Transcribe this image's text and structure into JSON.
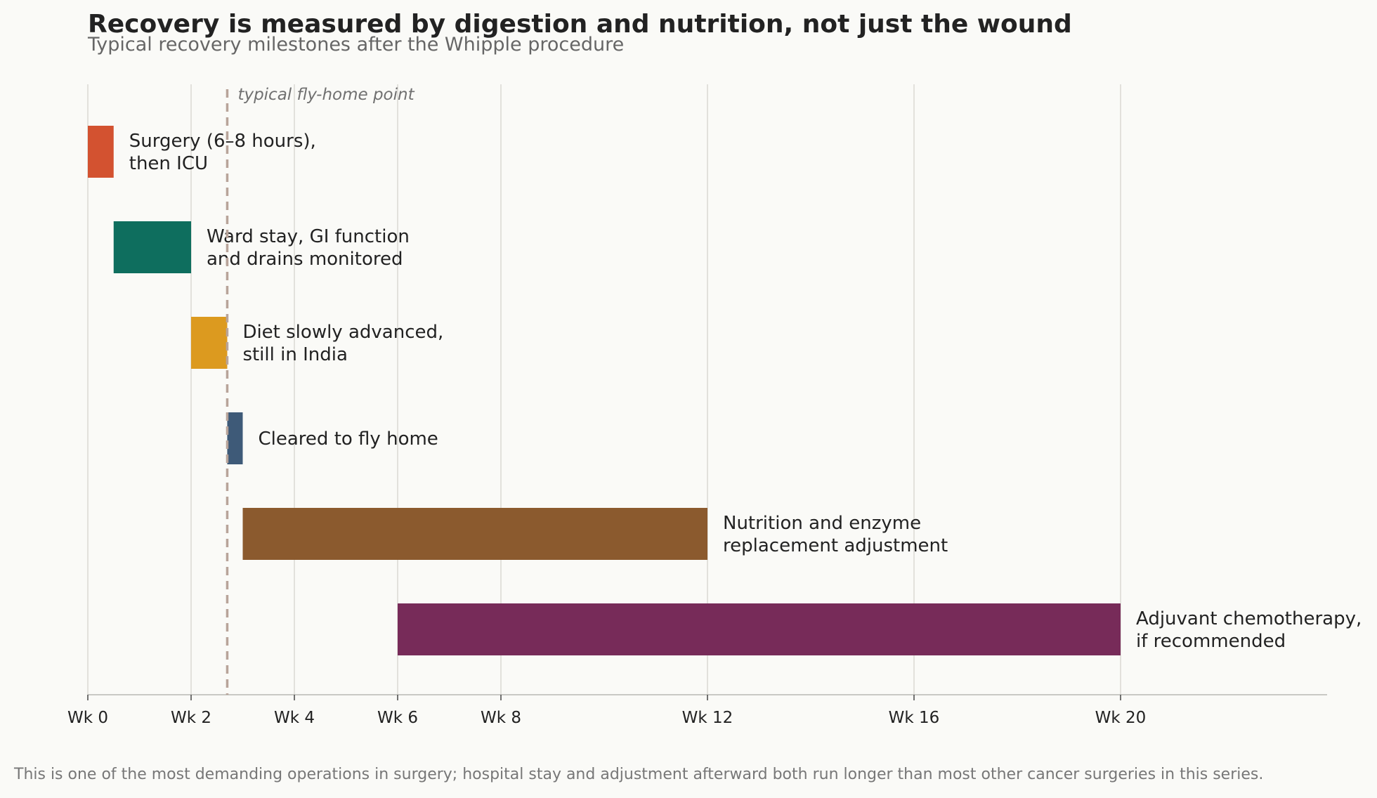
{
  "chart_data": {
    "type": "gantt",
    "title": "Recovery is measured by digestion and nutrition, not just the wound",
    "subtitle": "Typical recovery milestones after the Whipple procedure",
    "footnote": "This is one of the most demanding operations in surgery; hospital stay and adjustment afterward both run longer than most other cancer surgeries in this series.",
    "x_unit": "weeks",
    "xlim": [
      0,
      24
    ],
    "ticks": [
      {
        "value": 0,
        "label": "Wk 0"
      },
      {
        "value": 2,
        "label": "Wk 2"
      },
      {
        "value": 4,
        "label": "Wk 4"
      },
      {
        "value": 6,
        "label": "Wk 6"
      },
      {
        "value": 8,
        "label": "Wk 8"
      },
      {
        "value": 12,
        "label": "Wk 12"
      },
      {
        "value": 16,
        "label": "Wk 16"
      },
      {
        "value": 20,
        "label": "Wk 20"
      }
    ],
    "grid": true,
    "reference_line": {
      "value": 2.7,
      "label": "typical fly-home point"
    },
    "tasks": [
      {
        "label_lines": [
          "Surgery (6–8 hours),",
          "then ICU"
        ],
        "start": 0,
        "end": 0.5,
        "color": "#d35230"
      },
      {
        "label_lines": [
          "Ward stay, GI function",
          "and drains monitored"
        ],
        "start": 0.5,
        "end": 2,
        "color": "#0e6e5e"
      },
      {
        "label_lines": [
          "Diet slowly advanced,",
          "still in India"
        ],
        "start": 2,
        "end": 2.7,
        "color": "#dc9a1f"
      },
      {
        "label_lines": [
          "Cleared to fly home"
        ],
        "start": 2.7,
        "end": 3,
        "color": "#3e5a78"
      },
      {
        "label_lines": [
          "Nutrition and enzyme",
          "replacement adjustment"
        ],
        "start": 3,
        "end": 12,
        "color": "#8b5a2e"
      },
      {
        "label_lines": [
          "Adjuvant chemotherapy,",
          "if recommended"
        ],
        "start": 6,
        "end": 20,
        "color": "#772b59"
      }
    ]
  }
}
